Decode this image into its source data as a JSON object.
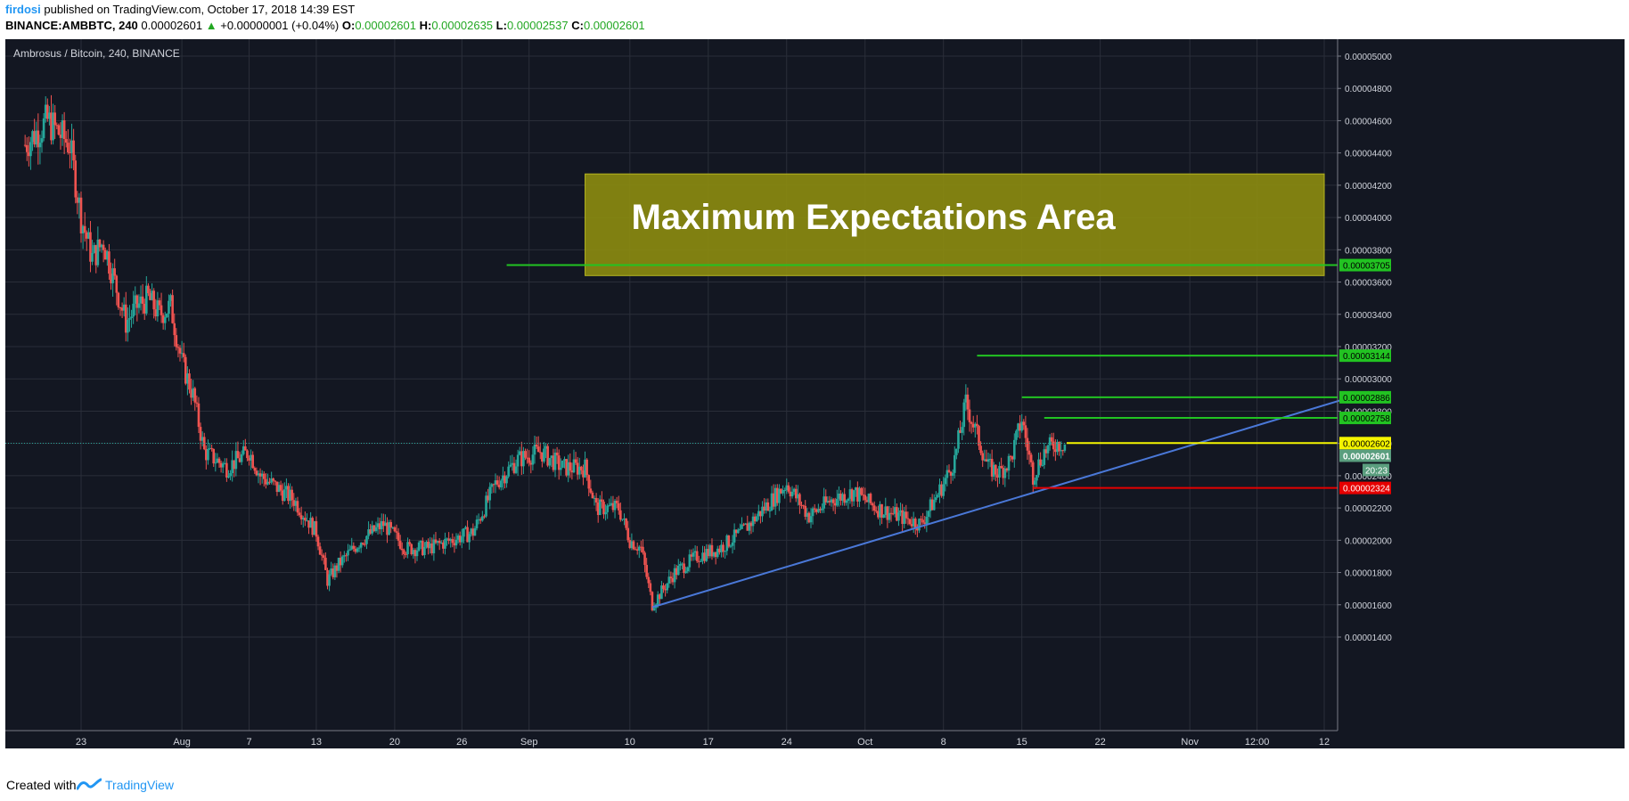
{
  "header": {
    "user": "firdosi",
    "published_text": "published on TradingView.com, October 17, 2018 14:39 EST",
    "symbol_line": "BINANCE:AMBBTC, 240",
    "last": "0.00002601",
    "change": "+0.00000001 (+0.04%)",
    "o_label": "O:",
    "o": "0.00002601",
    "h_label": "H:",
    "h": "0.00002635",
    "l_label": "L:",
    "l": "0.00002537",
    "c_label": "C:",
    "c": "0.00002601"
  },
  "footer": {
    "created": "Created with",
    "brand": "TradingView"
  },
  "colors": {
    "bg": "#131722",
    "grid": "#2a2e39",
    "up": "#26a69a",
    "down": "#ef5350",
    "green_line": "#22c322",
    "yellow_line": "#f5f500",
    "red_line": "#e60000",
    "trend": "#4a78d8",
    "box": "#8a8a10"
  },
  "chart_data": {
    "type": "candlestick",
    "title": "Ambrosus / Bitcoin, 240, BINANCE",
    "ylim": [
      1.4e-06,
      5.1e-06
    ],
    "y_ticks": [
      "0.00005000",
      "0.00004800",
      "0.00004600",
      "0.00004400",
      "0.00004200",
      "0.00004000",
      "0.00003800",
      "0.00003600",
      "0.00003400",
      "0.00003200",
      "0.00003000",
      "0.00002800",
      "0.00002600",
      "0.00002400",
      "0.00002200",
      "0.00002000",
      "0.00001800",
      "0.00001600",
      "0.00001400"
    ],
    "y_tick_values": [
      5e-05,
      4.8e-05,
      4.6e-05,
      4.4e-05,
      4.2e-05,
      4e-05,
      3.8e-05,
      3.6e-05,
      3.4e-05,
      3.2e-05,
      3e-05,
      2.8e-05,
      2.6e-05,
      2.4e-05,
      2.2e-05,
      2e-05,
      1.8e-05,
      1.6e-05,
      1.4e-05
    ],
    "x_labels": [
      "23",
      "Aug",
      "7",
      "13",
      "20",
      "26",
      "Sep",
      "10",
      "17",
      "24",
      "Oct",
      "8",
      "15",
      "22",
      "Nov",
      "12:00",
      "12"
    ],
    "x_label_days": [
      5,
      14,
      20,
      26,
      33,
      39,
      45,
      54,
      61,
      68,
      75,
      82,
      89,
      96,
      104,
      110,
      116
    ],
    "price_path": [
      [
        0,
        4.45e-05
      ],
      [
        2,
        4.6e-05
      ],
      [
        4,
        4.45e-05
      ],
      [
        5,
        4e-05
      ],
      [
        6,
        3.75e-05
      ],
      [
        7,
        3.85e-05
      ],
      [
        8,
        3.6e-05
      ],
      [
        9,
        3.35e-05
      ],
      [
        10,
        3.45e-05
      ],
      [
        11,
        3.5e-05
      ],
      [
        12,
        3.4e-05
      ],
      [
        13,
        3.45e-05
      ],
      [
        14,
        3.1e-05
      ],
      [
        15,
        2.9e-05
      ],
      [
        16,
        2.55e-05
      ],
      [
        17,
        2.5e-05
      ],
      [
        18,
        2.45e-05
      ],
      [
        20,
        2.55e-05
      ],
      [
        21,
        2.4e-05
      ],
      [
        22,
        2.35e-05
      ],
      [
        24,
        2.25e-05
      ],
      [
        26,
        2.05e-05
      ],
      [
        27,
        1.75e-05
      ],
      [
        28,
        1.85e-05
      ],
      [
        30,
        2e-05
      ],
      [
        32,
        2.1e-05
      ],
      [
        34,
        1.95e-05
      ],
      [
        36,
        1.95e-05
      ],
      [
        38,
        2e-05
      ],
      [
        40,
        2.05e-05
      ],
      [
        42,
        2.35e-05
      ],
      [
        44,
        2.5e-05
      ],
      [
        46,
        2.55e-05
      ],
      [
        48,
        2.45e-05
      ],
      [
        50,
        2.45e-05
      ],
      [
        51,
        2.2e-05
      ],
      [
        53,
        2.2e-05
      ],
      [
        54,
        2e-05
      ],
      [
        55,
        1.95e-05
      ],
      [
        56,
        1.6e-05
      ],
      [
        57,
        1.7e-05
      ],
      [
        58,
        1.8e-05
      ],
      [
        60,
        1.9e-05
      ],
      [
        62,
        1.95e-05
      ],
      [
        64,
        2.05e-05
      ],
      [
        66,
        2.2e-05
      ],
      [
        68,
        2.35e-05
      ],
      [
        70,
        2.15e-05
      ],
      [
        72,
        2.25e-05
      ],
      [
        74,
        2.3e-05
      ],
      [
        76,
        2.2e-05
      ],
      [
        78,
        2.15e-05
      ],
      [
        80,
        2.1e-05
      ],
      [
        82,
        2.35e-05
      ],
      [
        83,
        2.5e-05
      ],
      [
        84,
        2.85e-05
      ],
      [
        85,
        2.65e-05
      ],
      [
        86,
        2.45e-05
      ],
      [
        87,
        2.42e-05
      ],
      [
        88,
        2.5e-05
      ],
      [
        89,
        2.75e-05
      ],
      [
        90,
        2.4e-05
      ],
      [
        91,
        2.55e-05
      ],
      [
        92,
        2.6e-05
      ],
      [
        93,
        2.6e-05
      ]
    ],
    "horizontal_levels": [
      {
        "price": 3.705e-05,
        "label": "0.00003705",
        "color": "green",
        "from_day": 43
      },
      {
        "price": 3.144e-05,
        "label": "0.00003144",
        "color": "green",
        "from_day": 85
      },
      {
        "price": 2.886e-05,
        "label": "0.00002886",
        "color": "green",
        "from_day": 89
      },
      {
        "price": 2.758e-05,
        "label": "0.00002758",
        "color": "green",
        "from_day": 91
      },
      {
        "price": 2.602e-05,
        "label": "0.00002602",
        "color": "yellow",
        "from_day": 93
      },
      {
        "price": 2.324e-05,
        "label": "0.00002324",
        "color": "red",
        "from_day": 90
      }
    ],
    "last_price": {
      "price": 2.601e-05,
      "label": "0.00002601",
      "timer": "20:23"
    },
    "trendline": {
      "from": [
        56,
        1.585e-05
      ],
      "to": [
        120,
        2.92e-05
      ]
    },
    "annotation_box": {
      "text": "Maximum Expectations Area",
      "price_top": 4.27e-05,
      "price_bottom": 3.64e-05,
      "day_start": 50,
      "day_end": 116
    }
  }
}
